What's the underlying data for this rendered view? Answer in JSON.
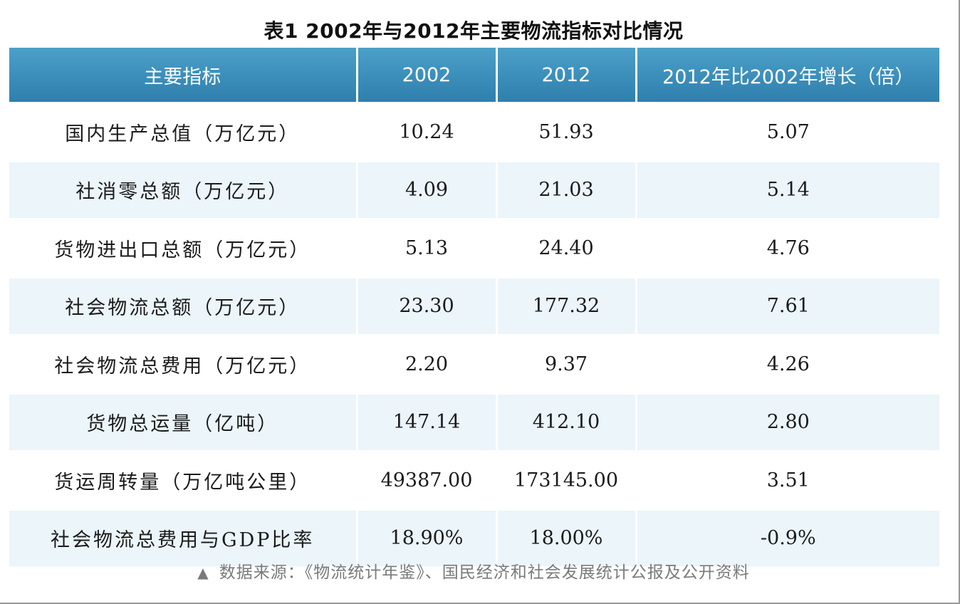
{
  "chart_data": {
    "type": "table",
    "title": "表1 2002年与2012年主要物流指标对比情况",
    "columns": [
      "主要指标",
      "2002",
      "2012",
      "2012年比2002年增长（倍）"
    ],
    "rows": [
      [
        "国内生产总值（万亿元）",
        "10.24",
        "51.93",
        "5.07"
      ],
      [
        "社消零总额（万亿元）",
        "4.09",
        "21.03",
        "5.14"
      ],
      [
        "货物进出口总额（万亿元）",
        "5.13",
        "24.40",
        "4.76"
      ],
      [
        "社会物流总额（万亿元）",
        "23.30",
        "177.32",
        "7.61"
      ],
      [
        "社会物流总费用（万亿元）",
        "2.20",
        "9.37",
        "4.26"
      ],
      [
        "货物总运量（亿吨）",
        "147.14",
        "412.10",
        "2.80"
      ],
      [
        "货运周转量（万亿吨公里）",
        "49387.00",
        "173145.00",
        "3.51"
      ],
      [
        "社会物流总费用与GDP比率",
        "18.90%",
        "18.00%",
        "-0.9%"
      ]
    ]
  },
  "source": {
    "marker": "▲",
    "text": "数据来源：《物流统计年鉴》、国民经济和社会发展统计公报及公开资料"
  },
  "colors": {
    "header_bg": "#3a8dbb",
    "stripe_bg": "#ebf5fa",
    "header_text": "#ffffff"
  }
}
